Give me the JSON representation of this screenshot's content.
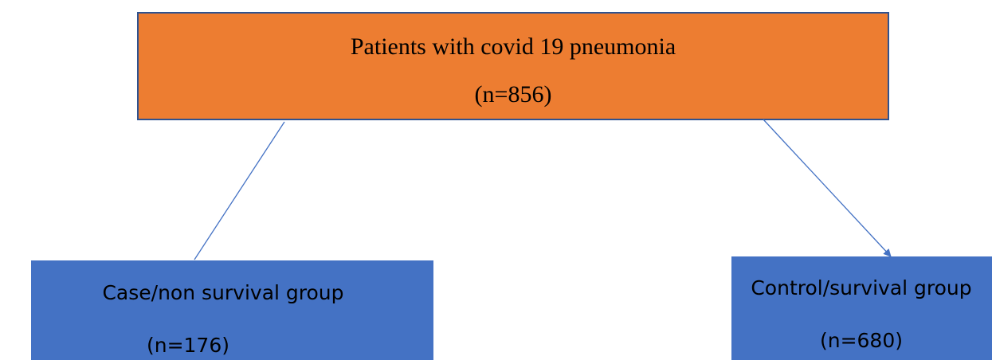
{
  "nodes": [
    {
      "label": "Patients with covid 19 pneumonia",
      "count": "(n=856)"
    },
    {
      "label": "Case/non survival group",
      "count": "(n=176)"
    },
    {
      "label": "Control/survival group",
      "count": "(n=680)"
    }
  ]
}
